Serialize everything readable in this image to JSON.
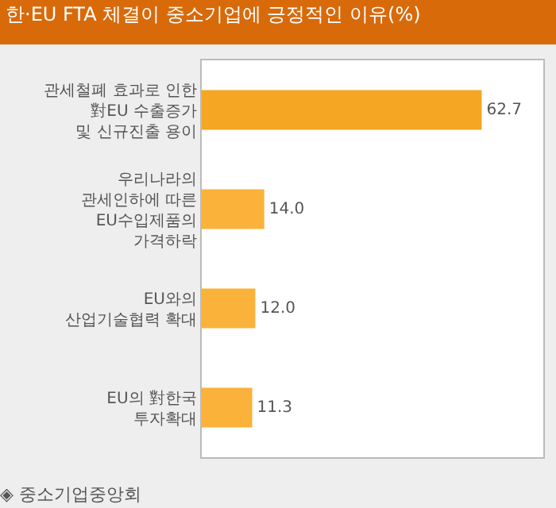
{
  "chart_data": {
    "type": "bar",
    "orientation": "horizontal",
    "title": "한·EU FTA 체결이 중소기업에 긍정적인 이유(%)",
    "categories": [
      "관세철폐 효과로 인한\n對EU 수출증가\n및 신규진출 용이",
      "우리나라의\n관세인하에 따른\nEU수입제품의\n가격하락",
      "EU와의\n산업기술협력 확대",
      "EU의 對한국\n투자확대"
    ],
    "values": [
      62.7,
      14.0,
      12.0,
      11.3
    ],
    "colors": [
      "#f5a623",
      "#fbb23a",
      "#fbb23a",
      "#fbb23a"
    ],
    "value_labels": [
      "62.7",
      "14.0",
      "12.0",
      "11.3"
    ],
    "annotations": [
      "◈ 중소기업중앙회"
    ]
  }
}
